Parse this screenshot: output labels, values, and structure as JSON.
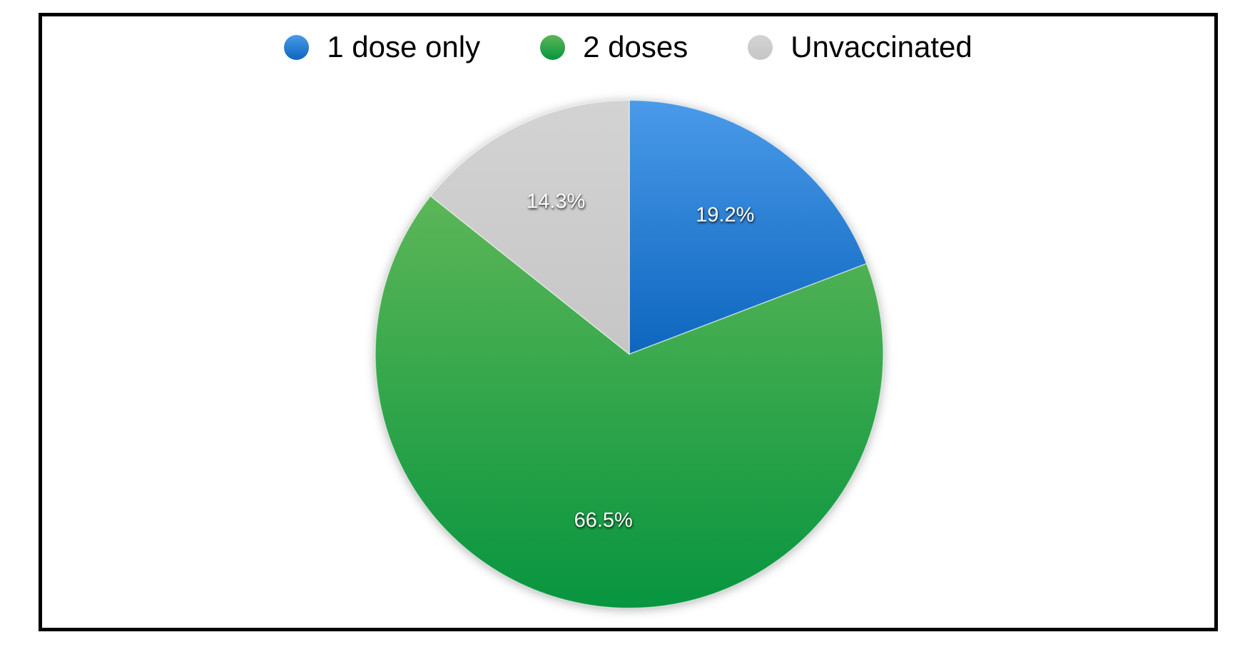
{
  "chart_data": {
    "type": "pie",
    "title": "",
    "legend_position": "top",
    "start_angle_deg": 0,
    "direction": "clockwise",
    "slices": [
      {
        "label": "1 dose only",
        "value": 19.2,
        "display": "19.2%",
        "color_top": "#4a9ae9",
        "color_bottom": "#0d66be"
      },
      {
        "label": "2 doses",
        "value": 66.5,
        "display": "66.5%",
        "color_top": "#5cb657",
        "color_bottom": "#07953f"
      },
      {
        "label": "Unvaccinated",
        "value": 14.3,
        "display": "14.3%",
        "color_top": "#d3d3d3",
        "color_bottom": "#c6c6c6"
      }
    ]
  },
  "frame": {
    "border_color": "#000000",
    "background": "#ffffff"
  }
}
